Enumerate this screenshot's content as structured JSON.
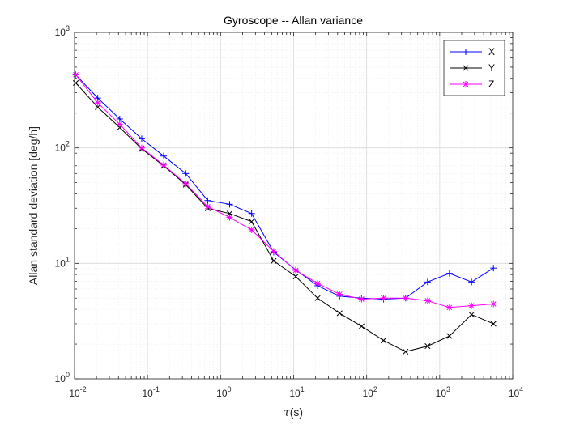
{
  "chart_data": {
    "type": "line",
    "title": "Gyroscope -- Allan variance",
    "xlabel": "τ(s)",
    "ylabel": "Allan standard deviation [deg/h]",
    "xscale": "log",
    "yscale": "log",
    "xlim": [
      0.01,
      10000
    ],
    "ylim": [
      1,
      1000
    ],
    "grid": true,
    "minor_grid": true,
    "legend_position": "top-right",
    "x_tick_labels": [
      {
        "base": "10",
        "exp": "-2"
      },
      {
        "base": "10",
        "exp": "-1"
      },
      {
        "base": "10",
        "exp": "0"
      },
      {
        "base": "10",
        "exp": "1"
      },
      {
        "base": "10",
        "exp": "2"
      },
      {
        "base": "10",
        "exp": "3"
      },
      {
        "base": "10",
        "exp": "4"
      }
    ],
    "y_tick_labels": [
      {
        "base": "10",
        "exp": "0"
      },
      {
        "base": "10",
        "exp": "1"
      },
      {
        "base": "10",
        "exp": "2"
      },
      {
        "base": "10",
        "exp": "3"
      }
    ],
    "x": [
      0.0104,
      0.0208,
      0.0416,
      0.0832,
      0.166,
      0.333,
      0.666,
      1.33,
      2.66,
      5.33,
      10.7,
      21.3,
      42.6,
      85.2,
      170,
      341,
      682,
      1360,
      2730,
      5450
    ],
    "series": [
      {
        "name": "X",
        "color": "#0000ff",
        "marker": "plus",
        "values": [
          430,
          270,
          178,
          120,
          85,
          60,
          35,
          32.5,
          27,
          12.5,
          8.8,
          6.4,
          5.2,
          5.0,
          4.9,
          5.0,
          6.9,
          8.2,
          6.9,
          9.1
        ]
      },
      {
        "name": "Y",
        "color": "#000000",
        "marker": "x",
        "values": [
          365,
          225,
          150,
          98,
          70,
          48,
          30,
          27,
          23,
          10.5,
          7.7,
          5.0,
          3.7,
          2.85,
          2.15,
          1.72,
          1.92,
          2.35,
          3.6,
          3.0
        ]
      },
      {
        "name": "Z",
        "color": "#ff00ff",
        "marker": "asterisk",
        "values": [
          430,
          245,
          160,
          100,
          71,
          49,
          31,
          25,
          19.5,
          12.7,
          8.7,
          6.7,
          5.4,
          4.9,
          5.0,
          5.0,
          4.75,
          4.15,
          4.3,
          4.45
        ]
      }
    ]
  }
}
